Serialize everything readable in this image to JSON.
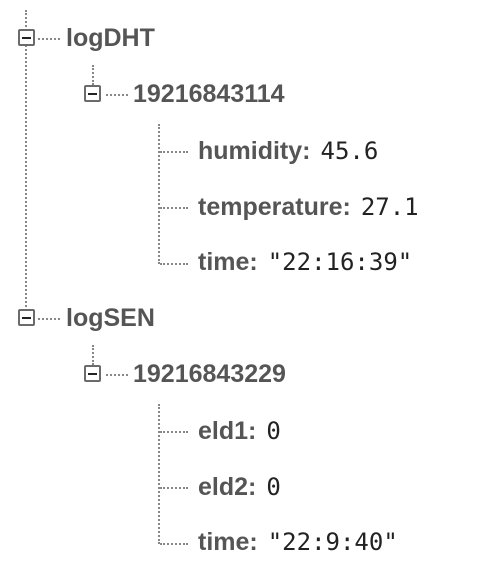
{
  "tree": {
    "logDHT": {
      "label": "logDHT",
      "entry": {
        "key": "19216843114",
        "humidity": {
          "key": "humidity:",
          "value": "45.6"
        },
        "temperature": {
          "key": "temperature:",
          "value": "27.1"
        },
        "time": {
          "key": "time:",
          "value": "\"22:16:39\""
        }
      }
    },
    "logSEN": {
      "label": "logSEN",
      "entry": {
        "key": "19216843229",
        "eld1": {
          "key": "eld1:",
          "value": "0"
        },
        "eld2": {
          "key": "eld2:",
          "value": "0"
        },
        "time": {
          "key": "time:",
          "value": "\"22:9:40\""
        }
      }
    }
  }
}
